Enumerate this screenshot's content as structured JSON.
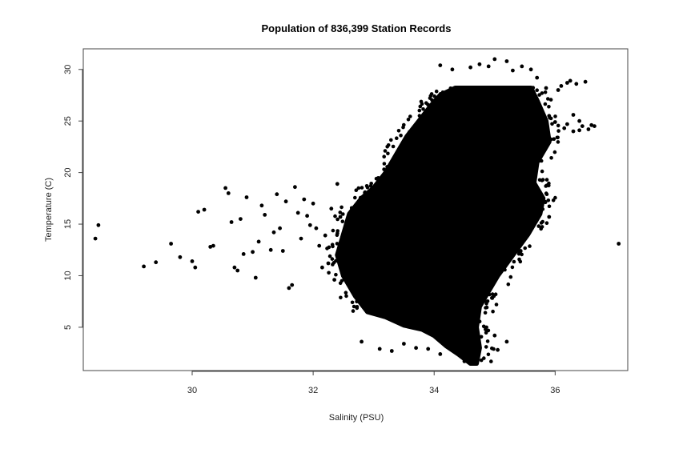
{
  "chart_data": {
    "type": "scatter",
    "title": "Population of 836,399 Station Records",
    "xlabel": "Salinity (PSU)",
    "ylabel": "Temperature (C)",
    "xlim": [
      28.2,
      37.2
    ],
    "ylim": [
      0.8,
      32.0
    ],
    "xticks": [
      30,
      32,
      34,
      36
    ],
    "yticks": [
      5,
      10,
      15,
      20,
      25,
      30
    ],
    "grid": false,
    "legend": "none",
    "marker_color": "#000000",
    "dense_region": {
      "left_edge": [
        [
          6.5,
          32.9
        ],
        [
          8,
          32.7
        ],
        [
          10,
          32.5
        ],
        [
          12,
          32.4
        ],
        [
          14,
          32.5
        ],
        [
          16,
          32.6
        ],
        [
          17.5,
          32.8
        ],
        [
          18.5,
          33.0
        ],
        [
          20,
          33.2
        ],
        [
          22,
          33.4
        ],
        [
          23.5,
          33.55
        ],
        [
          25,
          33.75
        ],
        [
          26.5,
          33.95
        ],
        [
          27.5,
          34.1
        ],
        [
          28.2,
          34.35
        ]
      ],
      "right_edge": [
        [
          1.5,
          34.7
        ],
        [
          3,
          34.75
        ],
        [
          5,
          34.7
        ],
        [
          7,
          34.75
        ],
        [
          8,
          34.85
        ],
        [
          10,
          35.05
        ],
        [
          12,
          35.3
        ],
        [
          14,
          35.55
        ],
        [
          16,
          35.75
        ],
        [
          17.5,
          35.8
        ],
        [
          19,
          35.65
        ],
        [
          21,
          35.7
        ],
        [
          23,
          35.9
        ],
        [
          25,
          35.85
        ],
        [
          27,
          35.7
        ],
        [
          28.2,
          35.6
        ]
      ],
      "bottom_edge": [
        [
          32.9,
          6.5
        ],
        [
          33.2,
          6.0
        ],
        [
          33.5,
          5.2
        ],
        [
          33.8,
          4.8
        ],
        [
          34.0,
          4.2
        ],
        [
          34.2,
          3.2
        ],
        [
          34.4,
          2.4
        ],
        [
          34.6,
          1.5
        ],
        [
          34.7,
          1.5
        ]
      ]
    },
    "series": [
      {
        "x": [
          28.4,
          28.45,
          29.2,
          29.4,
          29.65,
          29.8,
          30.0,
          30.05,
          30.1,
          30.2,
          30.3,
          30.35,
          30.55,
          30.6,
          30.65,
          30.7,
          30.75,
          30.8,
          30.85,
          30.9,
          31.0,
          31.05,
          31.1,
          31.15,
          31.2,
          31.3,
          31.35,
          31.4,
          31.45,
          31.5,
          31.55,
          31.6,
          31.65,
          31.7,
          31.75,
          31.8,
          31.85,
          31.9,
          31.95,
          32.0,
          32.05,
          32.1,
          32.15,
          32.2,
          32.25,
          32.3,
          32.35,
          32.4,
          32.45,
          32.8,
          33.1,
          33.3,
          33.5,
          33.7,
          34.1,
          34.3,
          34.6,
          34.75,
          34.9,
          35.0,
          35.2,
          35.3,
          35.45,
          35.6,
          35.7,
          35.85,
          35.9,
          36.0,
          36.05,
          36.1,
          36.15,
          36.2,
          36.25,
          36.3,
          36.35,
          36.4,
          36.45,
          36.5,
          36.55,
          36.6,
          36.65,
          36.3,
          36.4,
          35.9,
          36.2,
          37.05,
          33.9,
          34.3,
          34.6,
          34.85,
          35.05,
          34.5,
          35.0,
          35.2,
          34.1
        ],
        "y": [
          13.6,
          14.9,
          10.9,
          11.3,
          13.1,
          11.8,
          11.4,
          10.8,
          16.2,
          16.4,
          12.8,
          12.9,
          18.5,
          18.0,
          15.2,
          10.8,
          10.5,
          15.5,
          12.1,
          17.6,
          12.3,
          9.8,
          13.3,
          16.8,
          15.9,
          12.5,
          14.2,
          17.9,
          14.6,
          12.4,
          17.2,
          8.8,
          9.1,
          18.6,
          16.1,
          13.6,
          17.4,
          15.8,
          14.9,
          17.0,
          14.6,
          12.9,
          10.8,
          13.9,
          11.2,
          16.5,
          9.6,
          18.9,
          15.7,
          3.6,
          2.9,
          2.7,
          3.4,
          3.0,
          30.4,
          30.0,
          30.2,
          30.5,
          30.3,
          31.0,
          30.8,
          29.9,
          30.3,
          30.0,
          29.2,
          28.2,
          25.5,
          24.9,
          28.0,
          28.4,
          24.3,
          24.7,
          28.9,
          24.0,
          28.6,
          25.0,
          24.5,
          28.8,
          24.2,
          24.6,
          24.5,
          25.6,
          24.1,
          15.7,
          28.7,
          13.1,
          2.9,
          4.0,
          3.3,
          4.8,
          2.8,
          1.7,
          4.2,
          3.6,
          2.4
        ]
      }
    ]
  }
}
